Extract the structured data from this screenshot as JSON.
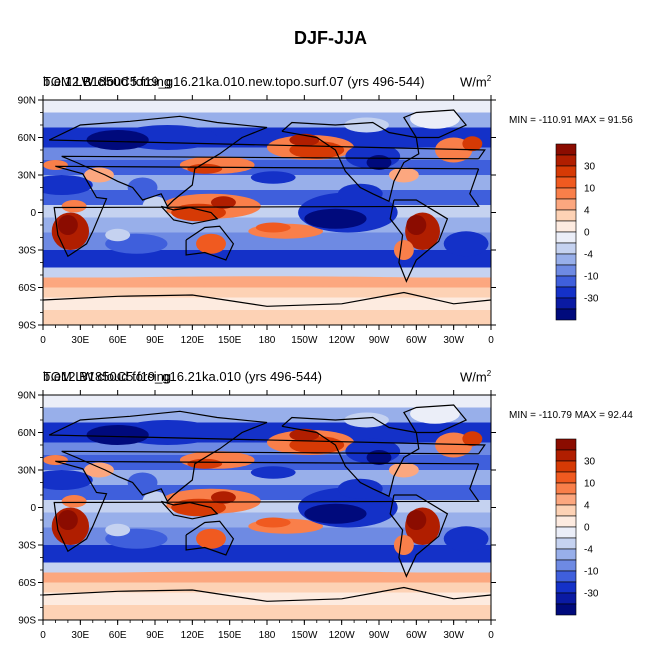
{
  "main_title": "DJF-JJA",
  "chart_data": [
    {
      "type": "heatmap",
      "title": "TOM LW cloud forcing",
      "overlay_title": "b.e.12.B1850C5.f19_g16.21ka.010.new.topo.surf.07 (yrs 496-544)",
      "units_base": "W/m",
      "units_exp": "2",
      "min_label": "MIN = -110.91",
      "max_label": "MAX =  91.56",
      "x_ticks": [
        "0",
        "30E",
        "60E",
        "90E",
        "120E",
        "150E",
        "180",
        "150W",
        "120W",
        "90W",
        "60W",
        "30W",
        "0"
      ],
      "y_ticks": [
        "90N",
        "60N",
        "30N",
        "0",
        "30S",
        "60S",
        "90S"
      ],
      "colorbar_labels": [
        "30",
        "10",
        "4",
        "0",
        "-4",
        "-10",
        "-30"
      ]
    },
    {
      "type": "heatmap",
      "title": "TOM LW cloud forcing",
      "overlay_title": "b.e12.B1850C5.f19_g16.21ka.010 (yrs 496-544)",
      "units_base": "W/m",
      "units_exp": "2",
      "min_label": "MIN = -110.79",
      "max_label": "MAX =  92.44",
      "x_ticks": [
        "0",
        "30E",
        "60E",
        "90E",
        "120E",
        "150E",
        "180",
        "150W",
        "120W",
        "90W",
        "60W",
        "30W",
        "0"
      ],
      "y_ticks": [
        "90N",
        "60N",
        "30N",
        "0",
        "30S",
        "60S",
        "90S"
      ],
      "colorbar_labels": [
        "30",
        "10",
        "4",
        "0",
        "-4",
        "-10",
        "-30"
      ]
    }
  ],
  "colors": [
    "#8b0c00",
    "#b01e00",
    "#d63a05",
    "#f05a20",
    "#f97f4a",
    "#fca77f",
    "#fdd2b5",
    "#fdebe0",
    "#ebeef8",
    "#c5d2f0",
    "#98afea",
    "#6e8ae3",
    "#3f5fdc",
    "#1431c8",
    "#0a1aa3",
    "#000a7c"
  ]
}
